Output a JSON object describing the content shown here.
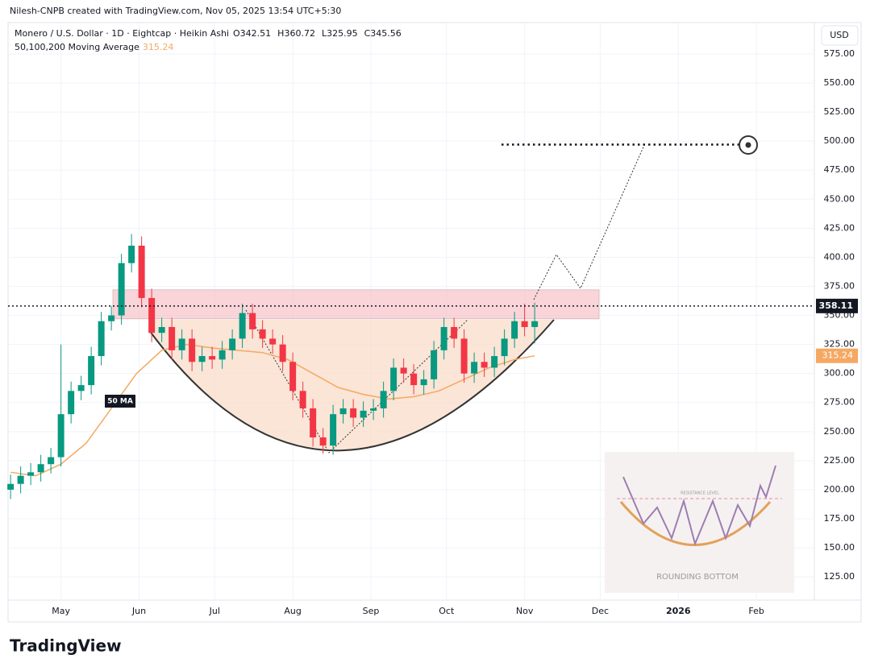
{
  "header": {
    "byline": "Nilesh-CNPB created with TradingView.com, Nov 05, 2025 13:54 UTC+5:30",
    "symbol": "Monero / U.S. Dollar · 1D · Eightcap · Heikin Ashi",
    "ohlc": [
      {
        "label": "O",
        "value": 342.51
      },
      {
        "label": "H",
        "value": 360.72
      },
      {
        "label": "L",
        "value": 325.95
      },
      {
        "label": "C",
        "value": 345.56
      }
    ],
    "indicator": "50,100,200 Moving Average",
    "currency": "USD"
  },
  "footer": {
    "logo": "TradingView"
  },
  "inset": {
    "title": "ROUNDING BOTTOM",
    "level": "RESISTANCE LEVEL"
  },
  "chart_data": {
    "type": "candlestick",
    "up_color": "#089981",
    "down_color": "#f23645",
    "grid": true,
    "x": [
      -20,
      -16,
      -12,
      -8,
      -4,
      0,
      4,
      8,
      12,
      16,
      20,
      24,
      28,
      32,
      36,
      40,
      44,
      48,
      52,
      56,
      60,
      64,
      68,
      72,
      76,
      80,
      84,
      88,
      92,
      96,
      100,
      104,
      108,
      112,
      116,
      120,
      124,
      128,
      132,
      136,
      140,
      144,
      148,
      152,
      156,
      160,
      164,
      168,
      172,
      176,
      180,
      184,
      188
    ],
    "open": [
      200,
      205,
      212,
      215,
      222,
      228,
      265,
      285,
      290,
      315,
      345,
      350,
      395,
      410,
      365,
      335,
      340,
      320,
      330,
      310,
      315,
      312,
      320,
      330,
      352,
      338,
      330,
      325,
      310,
      285,
      270,
      245,
      238,
      265,
      270,
      262,
      268,
      270,
      285,
      305,
      300,
      290,
      295,
      320,
      340,
      330,
      300,
      310,
      305,
      315,
      330,
      345,
      340
    ],
    "high": [
      213,
      220,
      223,
      230,
      236,
      325,
      293,
      298,
      323,
      353,
      358,
      403,
      420,
      418,
      373,
      348,
      348,
      338,
      338,
      323,
      323,
      328,
      338,
      360,
      360,
      346,
      338,
      333,
      318,
      293,
      278,
      253,
      273,
      278,
      278,
      276,
      278,
      293,
      313,
      313,
      308,
      303,
      328,
      348,
      348,
      338,
      318,
      318,
      323,
      338,
      353,
      360,
      361
    ],
    "low": [
      192,
      197,
      204,
      207,
      214,
      220,
      257,
      277,
      282,
      307,
      337,
      342,
      387,
      357,
      327,
      327,
      312,
      312,
      302,
      302,
      304,
      304,
      312,
      322,
      330,
      322,
      317,
      302,
      277,
      262,
      237,
      231,
      230,
      257,
      254,
      254,
      260,
      262,
      277,
      292,
      282,
      282,
      287,
      312,
      322,
      292,
      292,
      297,
      297,
      307,
      322,
      332,
      326
    ],
    "close": [
      205,
      212,
      215,
      222,
      228,
      265,
      285,
      290,
      315,
      345,
      350,
      395,
      410,
      365,
      335,
      340,
      320,
      330,
      310,
      315,
      312,
      320,
      330,
      352,
      338,
      330,
      325,
      310,
      285,
      270,
      245,
      238,
      265,
      270,
      262,
      268,
      270,
      285,
      305,
      300,
      290,
      295,
      320,
      340,
      330,
      300,
      310,
      305,
      315,
      330,
      345,
      340,
      345
    ],
    "ma": {
      "name": "50 MA",
      "color": "#f5a862",
      "value": 315.24,
      "x": [
        -20,
        -10,
        0,
        10,
        20,
        30,
        40,
        50,
        60,
        70,
        80,
        90,
        100,
        110,
        120,
        130,
        140,
        150,
        160,
        170,
        180,
        188
      ],
      "values": [
        215,
        212,
        222,
        240,
        270,
        300,
        320,
        325,
        322,
        320,
        318,
        312,
        300,
        288,
        282,
        278,
        280,
        285,
        295,
        305,
        312,
        315.24
      ]
    },
    "last_price": 358.11,
    "resistance_zone": {
      "low": 347,
      "high": 372
    },
    "target": 497,
    "xlim": [
      -21,
      299
    ],
    "xticks": [
      {
        "value": 0,
        "label": "May"
      },
      {
        "value": 31,
        "label": "Jun"
      },
      {
        "value": 61,
        "label": "Jul"
      },
      {
        "value": 92,
        "label": "Aug"
      },
      {
        "value": 123,
        "label": "Sep"
      },
      {
        "value": 153,
        "label": "Oct"
      },
      {
        "value": 184,
        "label": "Nov"
      },
      {
        "value": 214,
        "label": "Dec"
      },
      {
        "value": 245,
        "label": "2026"
      },
      {
        "value": 276,
        "label": "Feb"
      }
    ],
    "ylim": [
      105,
      602
    ],
    "yticks": [
      {
        "value": 125,
        "label": "125.00"
      },
      {
        "value": 150,
        "label": "150.00"
      },
      {
        "value": 175,
        "label": "175.00"
      },
      {
        "value": 200,
        "label": "200.00"
      },
      {
        "value": 225,
        "label": "225.00"
      },
      {
        "value": 250,
        "label": "250.00"
      },
      {
        "value": 275,
        "label": "275.00"
      },
      {
        "value": 300,
        "label": "300.00"
      },
      {
        "value": 325,
        "label": "325.00"
      },
      {
        "value": 350,
        "label": "350.00"
      },
      {
        "value": 375,
        "label": "375.00"
      },
      {
        "value": 400,
        "label": "400.00"
      },
      {
        "value": 425,
        "label": "425.00"
      },
      {
        "value": 450,
        "label": "450.00"
      },
      {
        "value": 475,
        "label": "475.00"
      },
      {
        "value": 500,
        "label": "500.00"
      },
      {
        "value": 525,
        "label": "525.00"
      },
      {
        "value": 550,
        "label": "550.00"
      },
      {
        "value": 575,
        "label": "575.00"
      }
    ]
  }
}
